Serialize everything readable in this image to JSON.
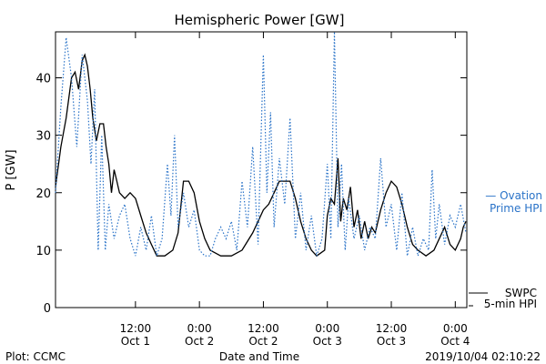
{
  "chart_data": {
    "type": "line",
    "title": "Hemispheric Power [GW]",
    "xlabel": "Date and Time",
    "ylabel": "P [GW]",
    "xlim": [
      "2019-09-30T21:00",
      "2019-10-04T02:10"
    ],
    "ylim": [
      0,
      48
    ],
    "yticks": [
      0,
      10,
      20,
      30,
      40
    ],
    "xticks": [
      {
        "t": "2019-10-01T12:00",
        "time": "12:00",
        "date": "Oct 1"
      },
      {
        "t": "2019-10-02T00:00",
        "time": "0:00",
        "date": "Oct 2"
      },
      {
        "t": "2019-10-02T12:00",
        "time": "12:00",
        "date": "Oct 2"
      },
      {
        "t": "2019-10-03T00:00",
        "time": "0:00",
        "date": "Oct 3"
      },
      {
        "t": "2019-10-03T12:00",
        "time": "12:00",
        "date": "Oct 3"
      },
      {
        "t": "2019-10-04T00:00",
        "time": "0:00",
        "date": "Oct 4"
      }
    ],
    "grid": false,
    "series": [
      {
        "name": "SWPC 5-min HPI",
        "style": "solid",
        "color": "#000000",
        "points": [
          [
            "2019-09-30T21:00",
            21
          ],
          [
            "2019-09-30T22:00",
            28
          ],
          [
            "2019-09-30T23:00",
            33
          ],
          [
            "2019-10-01T00:00",
            40
          ],
          [
            "2019-10-01T00:40",
            41
          ],
          [
            "2019-10-01T01:20",
            38
          ],
          [
            "2019-10-01T02:00",
            43
          ],
          [
            "2019-10-01T02:30",
            44
          ],
          [
            "2019-10-01T03:00",
            42
          ],
          [
            "2019-10-01T03:30",
            38
          ],
          [
            "2019-10-01T04:00",
            33
          ],
          [
            "2019-10-01T04:40",
            29
          ],
          [
            "2019-10-01T05:20",
            32
          ],
          [
            "2019-10-01T06:00",
            32
          ],
          [
            "2019-10-01T06:30",
            28
          ],
          [
            "2019-10-01T07:00",
            25
          ],
          [
            "2019-10-01T07:30",
            20
          ],
          [
            "2019-10-01T08:00",
            24
          ],
          [
            "2019-10-01T08:30",
            22
          ],
          [
            "2019-10-01T09:00",
            20
          ],
          [
            "2019-10-01T10:00",
            19
          ],
          [
            "2019-10-01T11:00",
            20
          ],
          [
            "2019-10-01T12:00",
            19
          ],
          [
            "2019-10-01T13:00",
            16
          ],
          [
            "2019-10-01T14:00",
            13
          ],
          [
            "2019-10-01T15:00",
            11
          ],
          [
            "2019-10-01T16:00",
            9
          ],
          [
            "2019-10-01T17:30",
            9
          ],
          [
            "2019-10-01T19:00",
            10
          ],
          [
            "2019-10-01T20:00",
            13
          ],
          [
            "2019-10-01T21:00",
            22
          ],
          [
            "2019-10-01T22:00",
            22
          ],
          [
            "2019-10-01T23:00",
            20
          ],
          [
            "2019-10-02T00:00",
            15
          ],
          [
            "2019-10-02T01:00",
            12
          ],
          [
            "2019-10-02T02:00",
            10
          ],
          [
            "2019-10-02T04:00",
            9
          ],
          [
            "2019-10-02T06:00",
            9
          ],
          [
            "2019-10-02T08:00",
            10
          ],
          [
            "2019-10-02T10:00",
            13
          ],
          [
            "2019-10-02T11:00",
            15
          ],
          [
            "2019-10-02T12:00",
            17
          ],
          [
            "2019-10-02T13:00",
            18
          ],
          [
            "2019-10-02T14:00",
            20
          ],
          [
            "2019-10-02T15:00",
            22
          ],
          [
            "2019-10-02T17:00",
            22
          ],
          [
            "2019-10-02T18:00",
            19
          ],
          [
            "2019-10-02T19:00",
            15
          ],
          [
            "2019-10-02T20:00",
            12
          ],
          [
            "2019-10-02T21:00",
            10
          ],
          [
            "2019-10-02T22:00",
            9
          ],
          [
            "2019-10-02T23:30",
            10
          ],
          [
            "2019-10-03T00:00",
            16
          ],
          [
            "2019-10-03T00:40",
            19
          ],
          [
            "2019-10-03T01:20",
            18
          ],
          [
            "2019-10-03T02:00",
            26
          ],
          [
            "2019-10-03T02:30",
            15
          ],
          [
            "2019-10-03T03:00",
            19
          ],
          [
            "2019-10-03T03:40",
            17
          ],
          [
            "2019-10-03T04:20",
            21
          ],
          [
            "2019-10-03T05:00",
            14
          ],
          [
            "2019-10-03T05:40",
            17
          ],
          [
            "2019-10-03T06:20",
            12
          ],
          [
            "2019-10-03T07:00",
            15
          ],
          [
            "2019-10-03T07:40",
            12
          ],
          [
            "2019-10-03T08:20",
            14
          ],
          [
            "2019-10-03T09:00",
            13
          ],
          [
            "2019-10-03T10:00",
            17
          ],
          [
            "2019-10-03T11:00",
            20
          ],
          [
            "2019-10-03T12:00",
            22
          ],
          [
            "2019-10-03T13:00",
            21
          ],
          [
            "2019-10-03T14:00",
            18
          ],
          [
            "2019-10-03T15:00",
            14
          ],
          [
            "2019-10-03T16:00",
            11
          ],
          [
            "2019-10-03T17:00",
            10
          ],
          [
            "2019-10-03T18:30",
            9
          ],
          [
            "2019-10-03T20:00",
            10
          ],
          [
            "2019-10-03T21:00",
            12
          ],
          [
            "2019-10-03T22:00",
            14
          ],
          [
            "2019-10-03T23:00",
            11
          ],
          [
            "2019-10-04T00:00",
            10
          ],
          [
            "2019-10-04T01:00",
            12
          ],
          [
            "2019-10-04T01:30",
            14
          ],
          [
            "2019-10-04T02:00",
            15
          ]
        ]
      },
      {
        "name": "Ovation Prime HPI",
        "style": "dotted",
        "color": "#2a73c8",
        "points": [
          [
            "2019-09-30T21:00",
            20
          ],
          [
            "2019-09-30T22:00",
            35
          ],
          [
            "2019-09-30T23:00",
            47
          ],
          [
            "2019-10-01T00:00",
            40
          ],
          [
            "2019-10-01T01:00",
            28
          ],
          [
            "2019-10-01T02:00",
            44
          ],
          [
            "2019-10-01T03:00",
            36
          ],
          [
            "2019-10-01T03:40",
            25
          ],
          [
            "2019-10-01T04:20",
            38
          ],
          [
            "2019-10-01T05:00",
            10
          ],
          [
            "2019-10-01T05:40",
            30
          ],
          [
            "2019-10-01T06:20",
            10
          ],
          [
            "2019-10-01T07:00",
            18
          ],
          [
            "2019-10-01T08:00",
            12
          ],
          [
            "2019-10-01T09:00",
            16
          ],
          [
            "2019-10-01T10:00",
            18
          ],
          [
            "2019-10-01T11:00",
            12
          ],
          [
            "2019-10-01T12:00",
            9
          ],
          [
            "2019-10-01T13:00",
            14
          ],
          [
            "2019-10-01T14:00",
            10
          ],
          [
            "2019-10-01T15:00",
            16
          ],
          [
            "2019-10-01T16:00",
            9
          ],
          [
            "2019-10-01T17:00",
            12
          ],
          [
            "2019-10-01T18:00",
            25
          ],
          [
            "2019-10-01T18:40",
            16
          ],
          [
            "2019-10-01T19:20",
            30
          ],
          [
            "2019-10-01T20:00",
            14
          ],
          [
            "2019-10-01T21:00",
            20
          ],
          [
            "2019-10-01T22:00",
            14
          ],
          [
            "2019-10-01T23:00",
            17
          ],
          [
            "2019-10-02T00:00",
            10
          ],
          [
            "2019-10-02T01:00",
            9
          ],
          [
            "2019-10-02T02:00",
            9
          ],
          [
            "2019-10-02T03:00",
            12
          ],
          [
            "2019-10-02T04:00",
            14
          ],
          [
            "2019-10-02T05:00",
            12
          ],
          [
            "2019-10-02T06:00",
            15
          ],
          [
            "2019-10-02T07:00",
            10
          ],
          [
            "2019-10-02T08:00",
            22
          ],
          [
            "2019-10-02T09:00",
            14
          ],
          [
            "2019-10-02T10:00",
            28
          ],
          [
            "2019-10-02T11:00",
            11
          ],
          [
            "2019-10-02T12:00",
            44
          ],
          [
            "2019-10-02T12:40",
            20
          ],
          [
            "2019-10-02T13:20",
            34
          ],
          [
            "2019-10-02T14:00",
            14
          ],
          [
            "2019-10-02T15:00",
            26
          ],
          [
            "2019-10-02T16:00",
            18
          ],
          [
            "2019-10-02T17:00",
            33
          ],
          [
            "2019-10-02T18:00",
            12
          ],
          [
            "2019-10-02T19:00",
            20
          ],
          [
            "2019-10-02T20:00",
            10
          ],
          [
            "2019-10-02T21:00",
            16
          ],
          [
            "2019-10-02T22:00",
            9
          ],
          [
            "2019-10-02T23:00",
            12
          ],
          [
            "2019-10-03T00:00",
            25
          ],
          [
            "2019-10-03T00:40",
            12
          ],
          [
            "2019-10-03T01:20",
            48
          ],
          [
            "2019-10-03T02:00",
            14
          ],
          [
            "2019-10-03T02:40",
            25
          ],
          [
            "2019-10-03T03:20",
            10
          ],
          [
            "2019-10-03T04:00",
            19
          ],
          [
            "2019-10-03T05:00",
            12
          ],
          [
            "2019-10-03T06:00",
            16
          ],
          [
            "2019-10-03T07:00",
            10
          ],
          [
            "2019-10-03T08:00",
            14
          ],
          [
            "2019-10-03T09:00",
            12
          ],
          [
            "2019-10-03T10:00",
            26
          ],
          [
            "2019-10-03T11:00",
            14
          ],
          [
            "2019-10-03T12:00",
            18
          ],
          [
            "2019-10-03T13:00",
            10
          ],
          [
            "2019-10-03T14:00",
            20
          ],
          [
            "2019-10-03T15:00",
            9
          ],
          [
            "2019-10-03T16:00",
            14
          ],
          [
            "2019-10-03T17:00",
            9
          ],
          [
            "2019-10-03T18:00",
            12
          ],
          [
            "2019-10-03T19:00",
            10
          ],
          [
            "2019-10-03T19:40",
            24
          ],
          [
            "2019-10-03T20:20",
            12
          ],
          [
            "2019-10-03T21:00",
            18
          ],
          [
            "2019-10-03T22:00",
            11
          ],
          [
            "2019-10-03T23:00",
            16
          ],
          [
            "2019-10-04T00:00",
            14
          ],
          [
            "2019-10-04T01:00",
            18
          ],
          [
            "2019-10-04T02:00",
            13
          ]
        ]
      }
    ],
    "legend": [
      {
        "series": "Ovation Prime HPI",
        "line1": "— Ovation",
        "line2": "Prime HPI",
        "placement": "right-middle"
      },
      {
        "series": "SWPC 5-min HPI",
        "line1": "SWPC",
        "line2": "5-min HPI",
        "placement": "right-bottom"
      }
    ]
  },
  "footer": {
    "left": "Plot: CCMC",
    "right": "2019/10/04 02:10:22"
  }
}
